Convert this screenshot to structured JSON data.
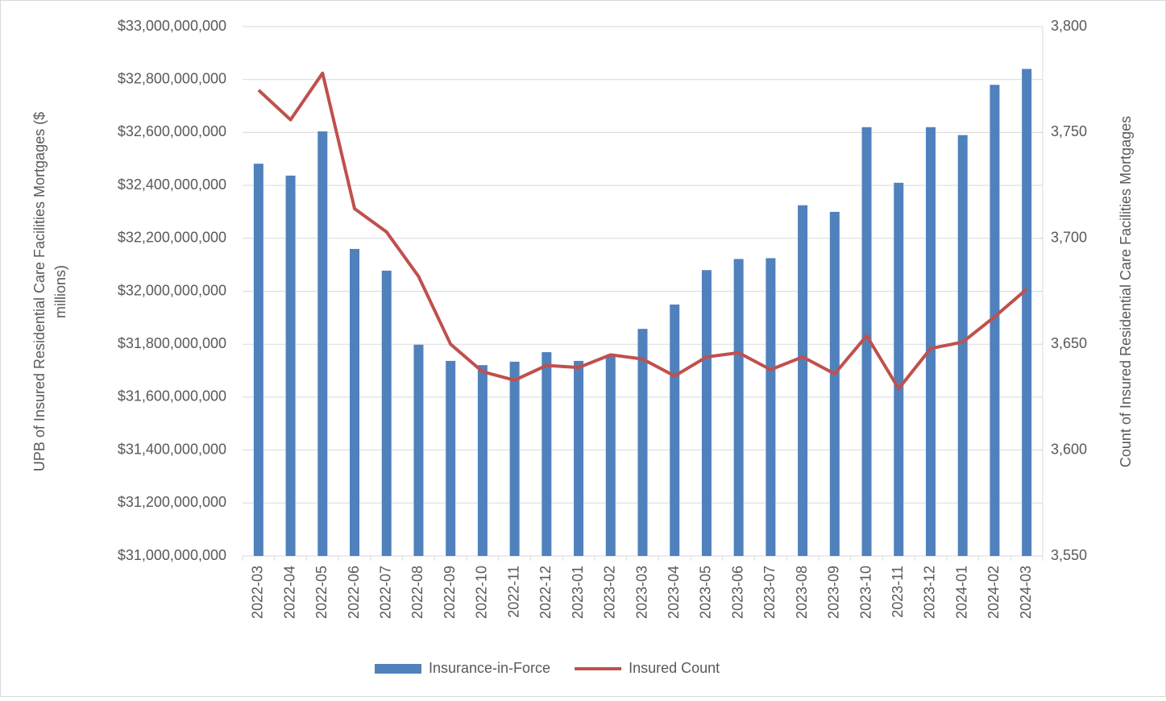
{
  "chart_data": {
    "type": "bar_line",
    "y_label": [
      "UPB of Insured Residential Care Facilities Mortgages ($",
      "millions)"
    ],
    "y2_label": "Count of Insured Residential Care Facilities Mortgages",
    "categories": [
      "2022-03",
      "2022-04",
      "2022-05",
      "2022-06",
      "2022-07",
      "2022-08",
      "2022-09",
      "2022-10",
      "2022-11",
      "2022-12",
      "2023-01",
      "2023-02",
      "2023-03",
      "2023-04",
      "2023-05",
      "2023-06",
      "2023-07",
      "2023-08",
      "2023-09",
      "2023-10",
      "2023-11",
      "2023-12",
      "2024-01",
      "2024-02",
      "2024-03"
    ],
    "series": [
      {
        "name": "Insurance-in-Force",
        "type": "bar",
        "color": "#4f81bd",
        "values": [
          32482000000,
          32437000000,
          32604000000,
          32160000000,
          32078000000,
          31798000000,
          31737000000,
          31721000000,
          31734000000,
          31770000000,
          31737000000,
          31760000000,
          31858000000,
          31950000000,
          32080000000,
          32122000000,
          32125000000,
          32325000000,
          32300000000,
          32620000000,
          32410000000,
          32620000000,
          32590000000,
          32780000000,
          32840000000
        ]
      },
      {
        "name": "Insured Count",
        "type": "line",
        "axis": "y2",
        "color": "#c0504d",
        "values": [
          3770,
          3756,
          3778,
          3714,
          3703,
          3682,
          3650,
          3637,
          3633,
          3640,
          3639,
          3645,
          3643,
          3635,
          3644,
          3646,
          3638,
          3644,
          3636,
          3654,
          3629,
          3648,
          3651,
          3663,
          3676
        ]
      }
    ],
    "ylim": [
      31000000000,
      33000000000
    ],
    "yticks": [
      {
        "value": 31000000000,
        "label": "$31,000,000,000"
      },
      {
        "value": 31200000000,
        "label": "$31,200,000,000"
      },
      {
        "value": 31400000000,
        "label": "$31,400,000,000"
      },
      {
        "value": 31600000000,
        "label": "$31,600,000,000"
      },
      {
        "value": 31800000000,
        "label": "$31,800,000,000"
      },
      {
        "value": 32000000000,
        "label": "$32,000,000,000"
      },
      {
        "value": 32200000000,
        "label": "$32,200,000,000"
      },
      {
        "value": 32400000000,
        "label": "$32,400,000,000"
      },
      {
        "value": 32600000000,
        "label": "$32,600,000,000"
      },
      {
        "value": 32800000000,
        "label": "$32,800,000,000"
      },
      {
        "value": 33000000000,
        "label": "$33,000,000,000"
      }
    ],
    "y2lim": [
      3550,
      3800
    ],
    "y2ticks": [
      {
        "value": 3550,
        "label": "3,550"
      },
      {
        "value": 3600,
        "label": "3,600"
      },
      {
        "value": 3650,
        "label": "3,650"
      },
      {
        "value": 3700,
        "label": "3,700"
      },
      {
        "value": 3750,
        "label": "3,750"
      },
      {
        "value": 3800,
        "label": "3,800"
      }
    ],
    "grid": true,
    "legend": "bottom"
  }
}
